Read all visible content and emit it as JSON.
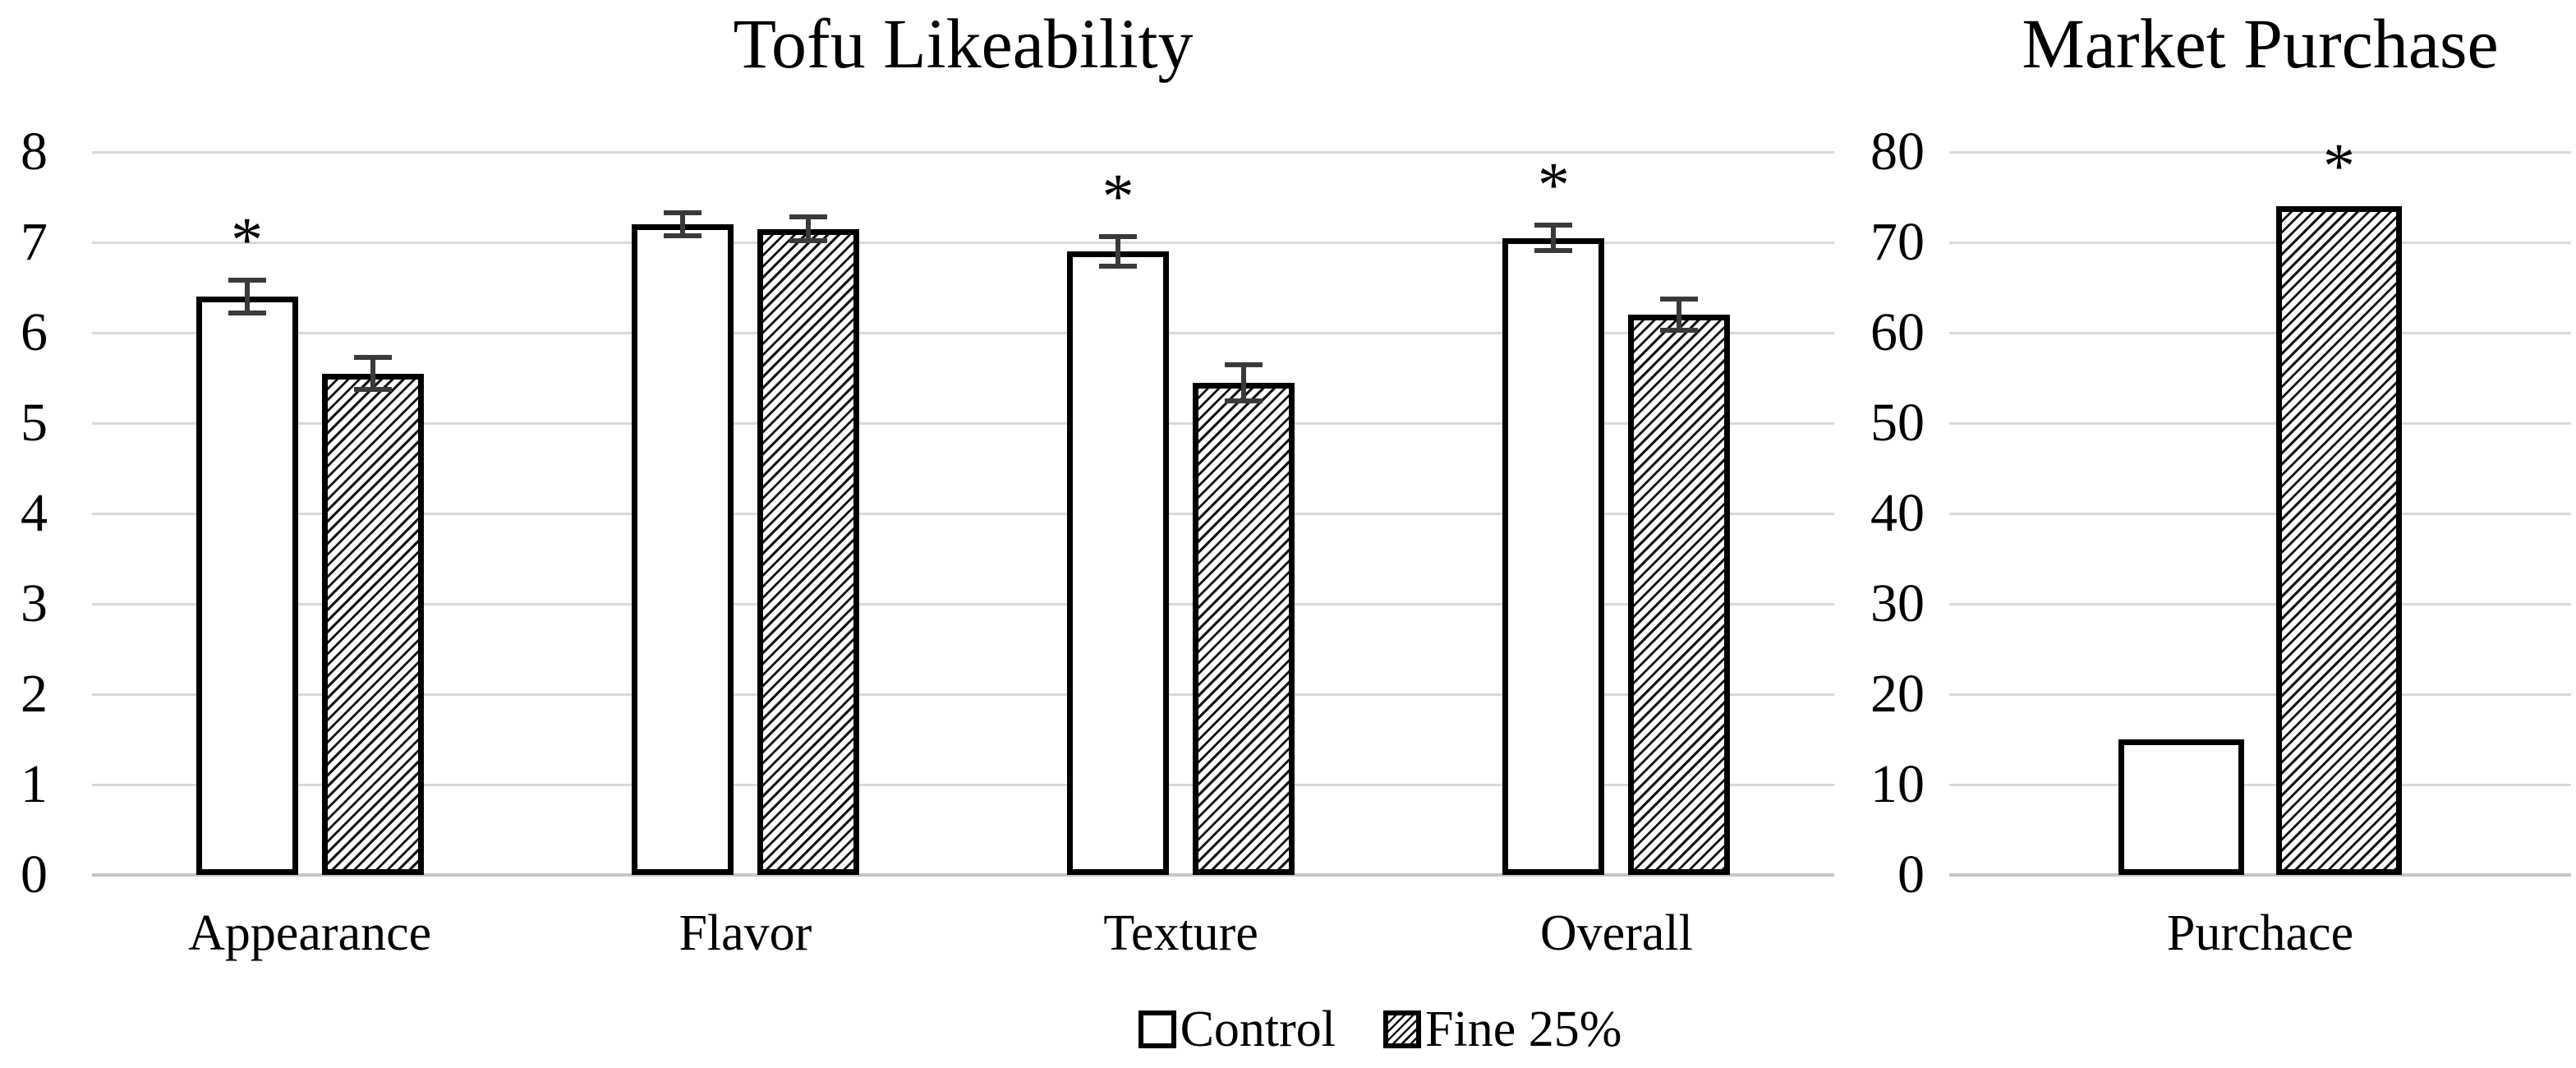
{
  "colors": {
    "background": "#ffffff",
    "text": "#000000",
    "gridline": "#d9d9d9",
    "axis_line": "#c6c6c6",
    "bar_fill": "#ffffff",
    "bar_border": "#000000",
    "hatch_line": "#141414",
    "error_bar": "#3a3a3a",
    "significance_marker": "#000000"
  },
  "legend": {
    "position": "bottom-center",
    "items": [
      {
        "label": "Control",
        "pattern": "solid"
      },
      {
        "label": "Fine 25%",
        "pattern": "hatch"
      }
    ]
  },
  "chart_data": [
    {
      "type": "bar",
      "title": "Tofu Likeability",
      "categories": [
        "Appearance",
        "Flavor",
        "Texture",
        "Overall"
      ],
      "series": [
        {
          "name": "Control",
          "pattern": "solid",
          "values": [
            6.4,
            7.2,
            6.9,
            7.05
          ],
          "errors": [
            0.18,
            0.13,
            0.16,
            0.14
          ],
          "significance": [
            "*",
            "",
            "*",
            "*"
          ]
        },
        {
          "name": "Fine 25%",
          "pattern": "hatch",
          "values": [
            5.55,
            7.15,
            5.45,
            6.2
          ],
          "errors": [
            0.18,
            0.13,
            0.2,
            0.17
          ],
          "significance": [
            "",
            "",
            "",
            ""
          ]
        }
      ],
      "xlabel": "",
      "ylabel": "",
      "ylim": [
        0,
        8
      ],
      "yticks": [
        0,
        1,
        2,
        3,
        4,
        5,
        6,
        7,
        8
      ],
      "grid": true,
      "error_bars": true,
      "legend_position": "bottom"
    },
    {
      "type": "bar",
      "title": "Market Purchase",
      "categories": [
        "Purchace"
      ],
      "series": [
        {
          "name": "Control",
          "pattern": "solid",
          "values": [
            15
          ],
          "errors": [
            0
          ],
          "significance": [
            ""
          ]
        },
        {
          "name": "Fine 25%",
          "pattern": "hatch",
          "values": [
            74
          ],
          "errors": [
            0
          ],
          "significance": [
            "*"
          ]
        }
      ],
      "xlabel": "",
      "ylabel": "",
      "ylim": [
        0,
        80
      ],
      "yticks": [
        0,
        10,
        20,
        30,
        40,
        50,
        60,
        70,
        80
      ],
      "grid": true,
      "error_bars": false
    }
  ]
}
